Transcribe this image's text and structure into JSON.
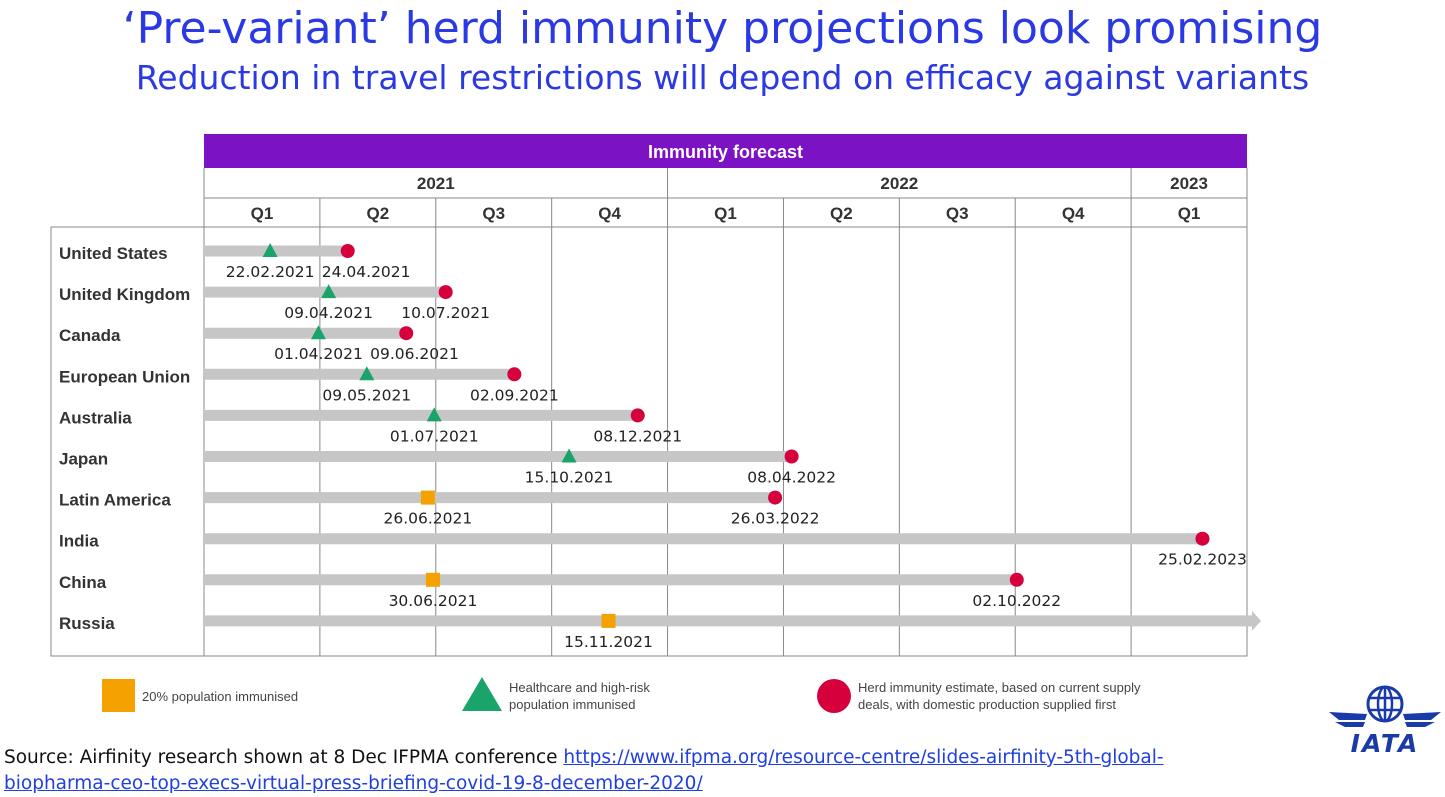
{
  "page": {
    "title": "‘Pre-variant’ herd immunity projections look promising",
    "subtitle": "Reduction in travel restrictions will depend on efficacy against variants"
  },
  "source": {
    "text": "Source: Airfinity research shown at 8 Dec IFPMA conference ",
    "link_line1": "https://www.ifpma.org/resource-centre/slides-airfinity-5th-global-",
    "link_line2": "biopharma-ceo-top-execs-virtual-press-briefing-covid-19-8-december-2020/"
  },
  "logo": {
    "icon": "iata-globe-wings-icon",
    "text": "IATA",
    "color": "#1a3aa8"
  },
  "colors": {
    "header": "#7b12c4",
    "bar": "#c6c6c6",
    "square": "#f5a100",
    "triangle": "#1aa36a",
    "circle": "#d6003c",
    "title": "#2a39e4"
  },
  "chart_data": {
    "type": "timeline",
    "title": "Immunity forecast",
    "years": [
      {
        "label": "2021",
        "quarters": 4
      },
      {
        "label": "2022",
        "quarters": 4
      },
      {
        "label": "2023",
        "quarters": 1
      }
    ],
    "quarters": [
      "Q1",
      "Q2",
      "Q3",
      "Q4",
      "Q1",
      "Q2",
      "Q3",
      "Q4",
      "Q1"
    ],
    "start": "2021-01-01",
    "end": "2023-04-01",
    "rows": [
      {
        "country": "United States",
        "markers": [
          {
            "kind": "triangle",
            "date": "2021-02-22",
            "label": "22.02.2021"
          },
          {
            "kind": "circle",
            "date": "2021-04-24",
            "label": "24.04.2021"
          }
        ]
      },
      {
        "country": "United Kingdom",
        "markers": [
          {
            "kind": "triangle",
            "date": "2021-04-09",
            "label": "09.04.2021"
          },
          {
            "kind": "circle",
            "date": "2021-07-10",
            "label": "10.07.2021"
          }
        ]
      },
      {
        "country": "Canada",
        "markers": [
          {
            "kind": "triangle",
            "date": "2021-04-01",
            "label": "01.04.2021"
          },
          {
            "kind": "circle",
            "date": "2021-06-09",
            "label": "09.06.2021"
          }
        ]
      },
      {
        "country": "European Union",
        "markers": [
          {
            "kind": "triangle",
            "date": "2021-05-09",
            "label": "09.05.2021"
          },
          {
            "kind": "circle",
            "date": "2021-09-02",
            "label": "02.09.2021"
          }
        ]
      },
      {
        "country": "Australia",
        "markers": [
          {
            "kind": "triangle",
            "date": "2021-07-01",
            "label": "01.07.2021"
          },
          {
            "kind": "circle",
            "date": "2021-12-08",
            "label": "08.12.2021"
          }
        ]
      },
      {
        "country": "Japan",
        "markers": [
          {
            "kind": "triangle",
            "date": "2021-10-15",
            "label": "15.10.2021"
          },
          {
            "kind": "circle",
            "date": "2022-04-08",
            "label": "08.04.2022"
          }
        ]
      },
      {
        "country": "Latin America",
        "markers": [
          {
            "kind": "square",
            "date": "2021-06-26",
            "label": "26.06.2021"
          },
          {
            "kind": "circle",
            "date": "2022-03-26",
            "label": "26.03.2022"
          }
        ]
      },
      {
        "country": "India",
        "markers": [
          {
            "kind": "circle",
            "date": "2023-02-25",
            "label": "25.02.2023"
          }
        ]
      },
      {
        "country": "China",
        "markers": [
          {
            "kind": "square",
            "date": "2021-06-30",
            "label": "30.06.2021"
          },
          {
            "kind": "circle",
            "date": "2022-10-02",
            "label": "02.10.2022"
          }
        ]
      },
      {
        "country": "Russia",
        "arrow": true,
        "markers": [
          {
            "kind": "square",
            "date": "2021-11-15",
            "label": "15.11.2021"
          }
        ]
      }
    ],
    "legend": [
      {
        "kind": "square",
        "text": [
          "20% population immunised"
        ]
      },
      {
        "kind": "triangle",
        "text": [
          "Healthcare and high-risk",
          "population immunised"
        ]
      },
      {
        "kind": "circle",
        "text": [
          "Herd immunity estimate, based on current supply",
          "deals, with domestic production supplied first"
        ]
      }
    ]
  }
}
